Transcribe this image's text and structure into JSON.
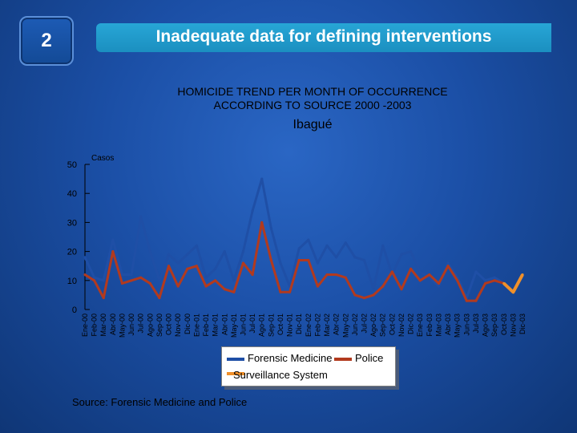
{
  "slide": {
    "number": "2",
    "heading": "Inadequate data for defining interventions",
    "source": "Source: Forensic Medicine and Police"
  },
  "colors": {
    "forensic": "#1f4fa6",
    "police": "#b23a1e",
    "surveillance": "#f0902a"
  },
  "chart_data": {
    "type": "line",
    "title_lines": [
      "HOMICIDE TREND PER MONTH OF OCCURRENCE",
      "ACCORDING TO SOURCE 2000 -2003"
    ],
    "subtitle": "Ibagué",
    "ylabel": "Casos",
    "ylim": [
      0,
      50
    ],
    "yticks": [
      0,
      10,
      20,
      30,
      40,
      50
    ],
    "x": [
      "Ene-00",
      "Feb-00",
      "Mar-00",
      "Abr-00",
      "May-00",
      "Jun-00",
      "Jul-00",
      "Ago-00",
      "Sep-00",
      "Oct-00",
      "Nov-00",
      "Dic-00",
      "Ene-01",
      "Feb-01",
      "Mar-01",
      "Abr-01",
      "May-01",
      "Jun-01",
      "Jul-01",
      "Ago-01",
      "Sep-01",
      "Oct-01",
      "Nov-01",
      "Dic-01",
      "Ene-02",
      "Feb-02",
      "Mar-02",
      "Abr-02",
      "May-02",
      "Jun-02",
      "Jul-02",
      "Ago-02",
      "Sep-02",
      "Oct-02",
      "Nov-02",
      "Dic-02",
      "Ene-03",
      "Feb-03",
      "Mar-03",
      "Abr-03",
      "May-03",
      "Jun-03",
      "Jul-03",
      "Ago-03",
      "Sep-03",
      "Oct-03",
      "Nov-03",
      "Dic-03"
    ],
    "series": [
      {
        "name": "Forensic Medicine",
        "color": "#1f4fa6",
        "values": [
          18,
          11,
          10,
          24,
          12,
          12,
          32,
          20,
          10,
          19,
          16,
          19,
          22,
          11,
          14,
          20,
          10,
          20,
          34,
          45,
          28,
          16,
          8,
          21,
          24,
          16,
          22,
          18,
          23,
          18,
          17,
          7,
          22,
          12,
          19,
          20,
          13,
          11,
          8,
          16,
          11,
          4,
          13,
          10,
          11,
          9,
          null,
          null
        ]
      },
      {
        "name": "Police",
        "color": "#b23a1e",
        "values": [
          12,
          10,
          4,
          20,
          9,
          10,
          11,
          9,
          4,
          15,
          8,
          14,
          15,
          8,
          10,
          7,
          6,
          16,
          12,
          30,
          17,
          6,
          6,
          17,
          17,
          8,
          12,
          12,
          11,
          5,
          4,
          5,
          8,
          13,
          7,
          14,
          10,
          12,
          9,
          15,
          10,
          3,
          3,
          9,
          10,
          9,
          null,
          null
        ]
      },
      {
        "name": "Surveillance System",
        "color": "#f0902a",
        "values": [
          null,
          null,
          null,
          null,
          null,
          null,
          null,
          null,
          null,
          null,
          null,
          null,
          null,
          null,
          null,
          null,
          null,
          null,
          null,
          null,
          null,
          null,
          null,
          null,
          null,
          null,
          null,
          null,
          null,
          null,
          null,
          null,
          null,
          null,
          null,
          null,
          null,
          null,
          null,
          null,
          null,
          null,
          null,
          null,
          null,
          9,
          6,
          12
        ]
      }
    ],
    "legend_placement": "bottom-center",
    "grid": false
  }
}
